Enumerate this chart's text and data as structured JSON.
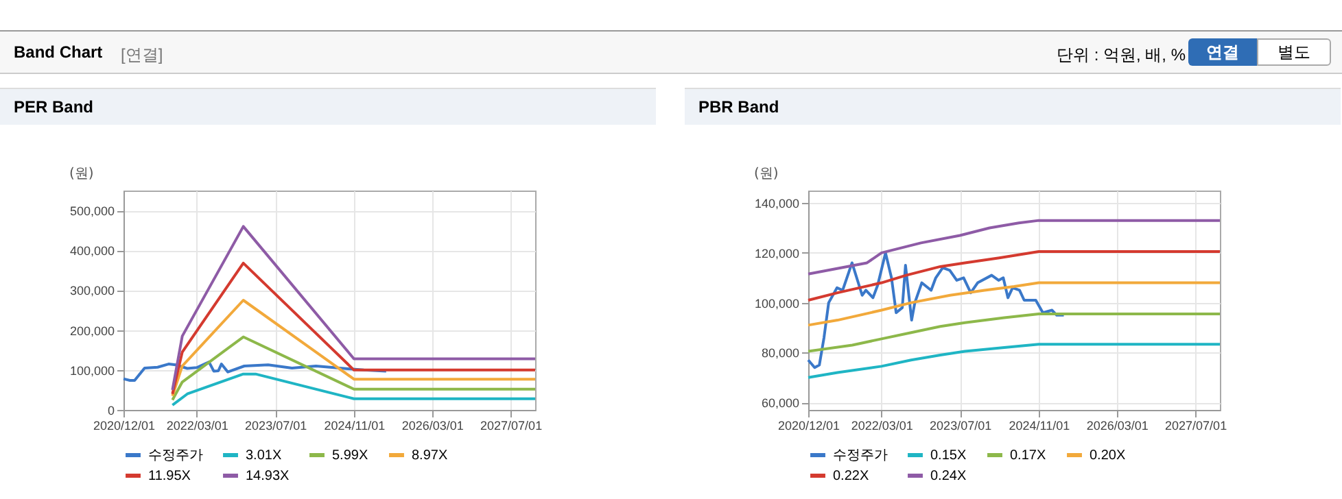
{
  "chart_data": [
    {
      "type": "line",
      "title": "PER Band",
      "ylabel": "(원)",
      "annotations": [
        "Band Chart",
        "[연결]",
        "단위 : 억원, 배, %",
        "연결",
        "별도"
      ],
      "xlim": [
        "2020-12-01",
        "2027-12-01"
      ],
      "ylim": [
        0,
        550000
      ],
      "xticks": [
        {
          "value": "2020-12-01",
          "label": "2020/12/01"
        },
        {
          "value": "2022-03-01",
          "label": "2022/03/01"
        },
        {
          "value": "2023-07-01",
          "label": "2023/07/01"
        },
        {
          "value": "2024-11-01",
          "label": "2024/11/01"
        },
        {
          "value": "2026-03-01",
          "label": "2026/03/01"
        },
        {
          "value": "2027-07-01",
          "label": "2027/07/01"
        }
      ],
      "yticks": [
        {
          "value": 0,
          "label": "0"
        },
        {
          "value": 100000,
          "label": "100,000"
        },
        {
          "value": 200000,
          "label": "200,000"
        },
        {
          "value": 300000,
          "label": "300,000"
        },
        {
          "value": 400000,
          "label": "400,000"
        },
        {
          "value": 500000,
          "label": "500,000"
        }
      ],
      "grid": true,
      "legend": "bottom",
      "marker": "none",
      "series": [
        {
          "name": "수정주가",
          "color": "#3a78c9",
          "x": [
            "2020-12-01",
            "2021-01-10",
            "2021-02-08",
            "2021-04-11",
            "2021-07-01",
            "2021-09-07",
            "2021-10-20",
            "2022-01-01",
            "2022-03-01",
            "2022-05-16",
            "2022-06-15",
            "2022-07-13",
            "2022-08-01",
            "2022-09-10",
            "2022-12-21",
            "2023-05-18",
            "2023-10-13",
            "2024-03-10",
            "2024-08-05",
            "2025-01-01",
            "2025-05-20"
          ],
          "values": [
            78000,
            74000,
            74000,
            105000,
            107000,
            115000,
            113000,
            104000,
            106000,
            120000,
            97000,
            98000,
            115000,
            95000,
            110000,
            113000,
            105000,
            110000,
            105000,
            100000,
            97000
          ]
        },
        {
          "name": "3.01X",
          "color": "#1fb5c4",
          "x": [
            "2021-10-01",
            "2022-01-01",
            "2022-12-15",
            "2023-03-01",
            "2024-11-01",
            "2027-12-01"
          ],
          "values": [
            12000,
            40000,
            90000,
            90000,
            28000,
            28000
          ]
        },
        {
          "name": "5.99X",
          "color": "#8db84a",
          "x": [
            "2021-10-01",
            "2021-12-01",
            "2022-12-15",
            "2024-11-01",
            "2027-12-01"
          ],
          "values": [
            25000,
            70000,
            183000,
            52000,
            52000
          ]
        },
        {
          "name": "8.97X",
          "color": "#f2a93b",
          "x": [
            "2021-10-01",
            "2021-12-01",
            "2022-12-15",
            "2024-11-01",
            "2027-12-01"
          ],
          "values": [
            35000,
            110000,
            275000,
            77000,
            77000
          ]
        },
        {
          "name": "11.95X",
          "color": "#d43a2f",
          "x": [
            "2021-10-01",
            "2021-12-01",
            "2022-12-15",
            "2024-11-01",
            "2027-12-01"
          ],
          "values": [
            40000,
            145000,
            368000,
            100000,
            100000
          ]
        },
        {
          "name": "14.93X",
          "color": "#8e5ba6",
          "x": [
            "2021-10-01",
            "2021-12-01",
            "2022-12-15",
            "2024-11-01",
            "2027-12-01"
          ],
          "values": [
            50000,
            185000,
            460000,
            128000,
            128000
          ]
        }
      ]
    },
    {
      "type": "line",
      "title": "PBR Band",
      "ylabel": "(원)",
      "xlim": [
        "2020-12-01",
        "2027-12-01"
      ],
      "ylim": [
        57000,
        145000
      ],
      "xticks": [
        {
          "value": "2020-12-01",
          "label": "2020/12/01"
        },
        {
          "value": "2022-03-01",
          "label": "2022/03/01"
        },
        {
          "value": "2023-07-01",
          "label": "2023/07/01"
        },
        {
          "value": "2024-11-01",
          "label": "2024/11/01"
        },
        {
          "value": "2026-03-01",
          "label": "2026/03/01"
        },
        {
          "value": "2027-07-01",
          "label": "2027/07/01"
        }
      ],
      "yticks": [
        {
          "value": 60000,
          "label": "60,000"
        },
        {
          "value": 80000,
          "label": "80,000"
        },
        {
          "value": 100000,
          "label": "100,000"
        },
        {
          "value": 120000,
          "label": "120,000"
        },
        {
          "value": 140000,
          "label": "140,000"
        }
      ],
      "grid": true,
      "legend": "bottom",
      "marker": "none",
      "series": [
        {
          "name": "수정주가",
          "color": "#3a78c9",
          "x": [
            "2020-12-01",
            "2021-01-10",
            "2021-02-08",
            "2021-03-09",
            "2021-04-07",
            "2021-05-29",
            "2021-07-03",
            "2021-08-30",
            "2021-11-01",
            "2021-11-24",
            "2022-01-07",
            "2022-02-05",
            "2022-03-26",
            "2022-05-02",
            "2022-05-31",
            "2022-07-08",
            "2022-07-28",
            "2022-09-04",
            "2022-09-24",
            "2022-11-06",
            "2023-01-03",
            "2023-02-01",
            "2023-03-16",
            "2023-04-29",
            "2023-06-11",
            "2023-07-24",
            "2023-09-06",
            "2023-10-19",
            "2024-01-14",
            "2024-02-26",
            "2024-03-26",
            "2024-04-24",
            "2024-05-23",
            "2024-07-05",
            "2024-08-03",
            "2024-10-14",
            "2024-11-27",
            "2025-01-23",
            "2025-02-21",
            "2025-04-06"
          ],
          "values": [
            77000,
            74000,
            75000,
            86000,
            100000,
            106000,
            105000,
            116000,
            103000,
            105000,
            102000,
            107000,
            120000,
            110000,
            96000,
            98000,
            115000,
            93000,
            100000,
            108000,
            105000,
            110000,
            114000,
            113000,
            109000,
            110000,
            104000,
            108000,
            111000,
            109000,
            110000,
            102000,
            106000,
            105000,
            101000,
            101000,
            96000,
            97000,
            95000,
            95000
          ]
        },
        {
          "name": "0.15X",
          "color": "#1fb5c4",
          "x": [
            "2020-12-01",
            "2021-06-01",
            "2022-03-01",
            "2022-09-01",
            "2023-03-01",
            "2023-08-01",
            "2024-04-01",
            "2024-11-01",
            "2027-12-01"
          ],
          "values": [
            70000,
            72000,
            74500,
            77000,
            79000,
            80500,
            82000,
            83300,
            83300
          ]
        },
        {
          "name": "0.17X",
          "color": "#8db84a",
          "x": [
            "2020-12-01",
            "2021-09-01",
            "2022-03-01",
            "2022-09-01",
            "2023-03-01",
            "2023-08-01",
            "2024-04-01",
            "2024-11-01",
            "2027-12-01"
          ],
          "values": [
            80500,
            83000,
            85500,
            88000,
            90500,
            92000,
            94000,
            95500,
            95500
          ]
        },
        {
          "name": "0.20X",
          "color": "#f2a93b",
          "x": [
            "2020-12-01",
            "2021-06-01",
            "2022-03-01",
            "2022-09-01",
            "2023-05-01",
            "2023-12-01",
            "2024-06-01",
            "2024-11-01",
            "2027-12-01"
          ],
          "values": [
            91000,
            93000,
            97000,
            100000,
            103000,
            105000,
            106500,
            108000,
            108000
          ]
        },
        {
          "name": "0.22X",
          "color": "#d43a2f",
          "x": [
            "2020-12-01",
            "2021-06-01",
            "2022-03-01",
            "2022-08-01",
            "2023-03-01",
            "2023-08-01",
            "2024-03-01",
            "2024-11-01",
            "2027-12-01"
          ],
          "values": [
            101000,
            104000,
            108000,
            111000,
            114500,
            116000,
            118000,
            120500,
            120500
          ]
        },
        {
          "name": "0.24X",
          "color": "#8e5ba6",
          "x": [
            "2020-12-01",
            "2021-12-01",
            "2022-03-01",
            "2022-11-01",
            "2023-07-01",
            "2024-01-01",
            "2024-07-01",
            "2024-11-01",
            "2027-12-01"
          ],
          "values": [
            111500,
            116000,
            120000,
            124000,
            127000,
            130000,
            132000,
            133000,
            133000
          ]
        }
      ]
    }
  ]
}
